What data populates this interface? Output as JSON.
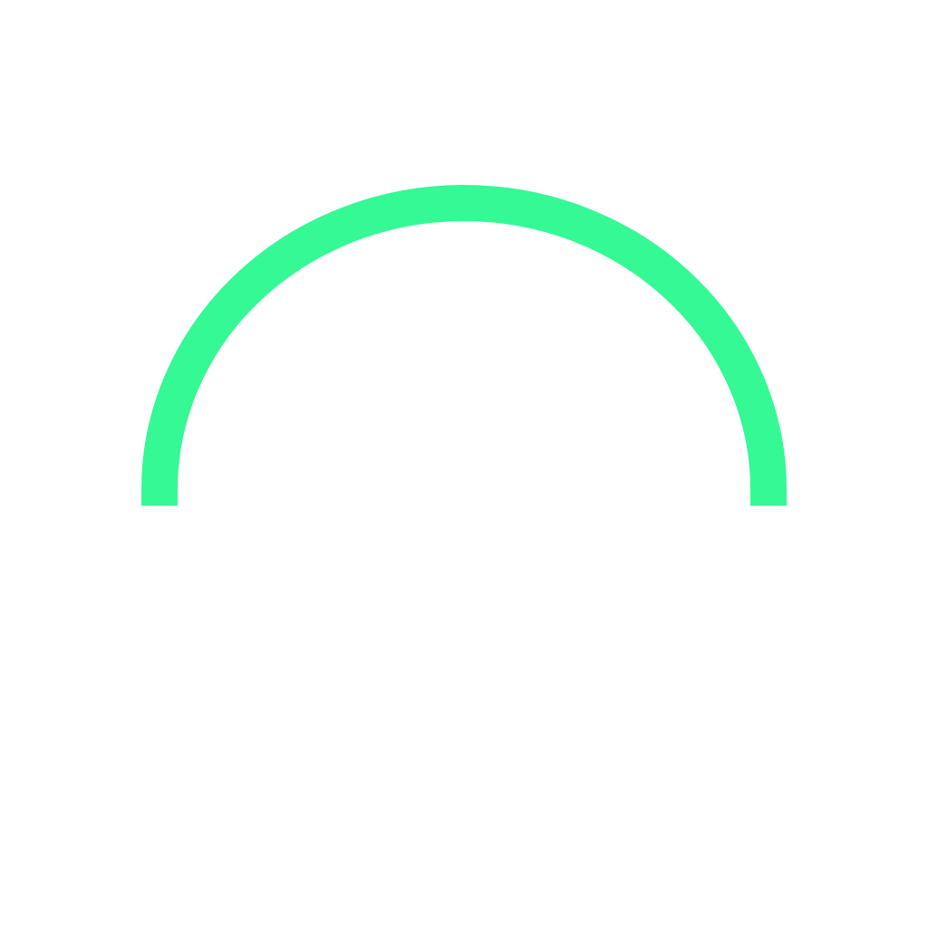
{
  "shape": {
    "icon": "semicircle-arc-icon",
    "color": "#34F995",
    "background": "#FFFFFF"
  }
}
